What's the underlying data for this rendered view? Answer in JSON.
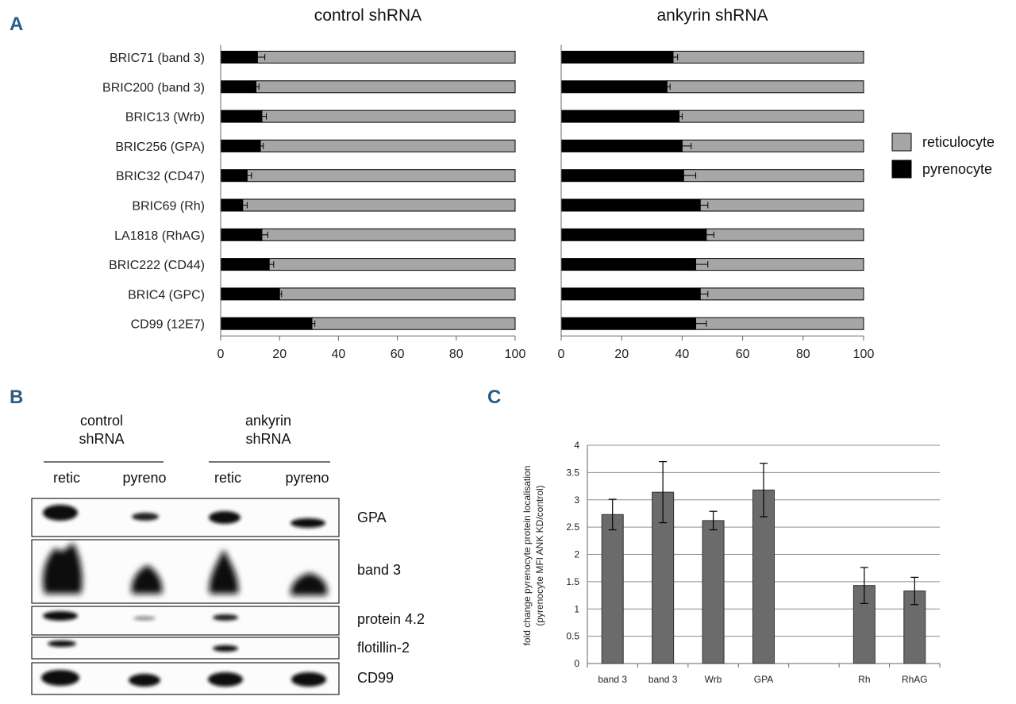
{
  "panels": {
    "a": {
      "letter": "A"
    },
    "b": {
      "letter": "B",
      "groups": [
        {
          "line1": "control",
          "line2": "shRNA"
        },
        {
          "line1": "ankyrin",
          "line2": "shRNA"
        }
      ],
      "lanes": [
        "retic",
        "pyreno",
        "retic",
        "pyreno"
      ],
      "proteins": [
        "GPA",
        "band 3",
        "protein 4.2",
        "flotillin-2",
        "CD99"
      ]
    },
    "c": {
      "letter": "C"
    }
  },
  "chart_data": [
    {
      "type": "bar",
      "orientation": "horizontal",
      "stacked": true,
      "title": "control shRNA",
      "categories": [
        "BRIC71 (band 3)",
        "BRIC200 (band 3)",
        "BRIC13 (Wrb)",
        "BRIC256 (GPA)",
        "BRIC32 (CD47)",
        "BRIC69 (Rh)",
        "LA1818 (RhAG)",
        "BRIC222 (CD44)",
        "BRIC4 (GPC)",
        "CD99 (12E7)"
      ],
      "series": [
        {
          "name": "pyrenocyte",
          "color": "#000000",
          "values": [
            12.5,
            12,
            14,
            13.5,
            9,
            7.5,
            14,
            16.5,
            20,
            31
          ],
          "errors": [
            2.5,
            1,
            1.5,
            1,
            1.5,
            1.5,
            2,
            1.5,
            0.7,
            1
          ]
        },
        {
          "name": "reticulocyte",
          "color": "#a6a6a6",
          "values": [
            87.5,
            88,
            86,
            86.5,
            91,
            92.5,
            86,
            83.5,
            80,
            69
          ]
        }
      ],
      "xlim": [
        0,
        100
      ],
      "xticks": [
        "0",
        "20",
        "40",
        "60",
        "80",
        "100"
      ]
    },
    {
      "type": "bar",
      "orientation": "horizontal",
      "stacked": true,
      "title": "ankyrin shRNA",
      "categories": [
        "BRIC71 (band 3)",
        "BRIC200 (band 3)",
        "BRIC13 (Wrb)",
        "BRIC256 (GPA)",
        "BRIC32 (CD47)",
        "BRIC69 (Rh)",
        "LA1818 (RhAG)",
        "BRIC222 (CD44)",
        "BRIC4 (GPC)",
        "CD99 (12E7)"
      ],
      "series": [
        {
          "name": "pyrenocyte",
          "color": "#000000",
          "values": [
            37,
            35,
            39,
            40,
            40.5,
            46,
            48,
            44.5,
            46,
            44.5
          ],
          "errors": [
            1.5,
            1,
            1,
            3,
            4,
            2.5,
            2.5,
            4,
            2.5,
            3.5
          ]
        },
        {
          "name": "reticulocyte",
          "color": "#a6a6a6",
          "values": [
            63,
            65,
            61,
            60,
            59.5,
            54,
            52,
            55.5,
            54,
            55.5
          ]
        }
      ],
      "xlim": [
        0,
        100
      ],
      "xticks": [
        "0",
        "20",
        "40",
        "60",
        "80",
        "100"
      ],
      "legend": {
        "placement": "right",
        "entries": [
          {
            "name": "reticulocyte",
            "color": "#a6a6a6"
          },
          {
            "name": "pyrenocyte",
            "color": "#000000"
          }
        ]
      }
    },
    {
      "type": "bar",
      "title": "",
      "ylabel": [
        "fold change pyrenocyte protein localisation",
        "(pyrenocyte MFI ANK KD/control)"
      ],
      "categories": [
        "band 3",
        "band 3",
        "Wrb",
        "GPA",
        "",
        "Rh",
        "RhAG"
      ],
      "values": [
        2.73,
        3.14,
        2.62,
        3.18,
        null,
        1.43,
        1.33
      ],
      "errors": [
        0.28,
        0.56,
        0.17,
        0.49,
        null,
        0.33,
        0.25
      ],
      "ylim": [
        0,
        4
      ],
      "yticks": [
        "0",
        "0.5",
        "1",
        "1.5",
        "2",
        "2.5",
        "3",
        "3.5",
        "4"
      ],
      "grid": true,
      "bar_color": "#6b6b6b"
    }
  ]
}
